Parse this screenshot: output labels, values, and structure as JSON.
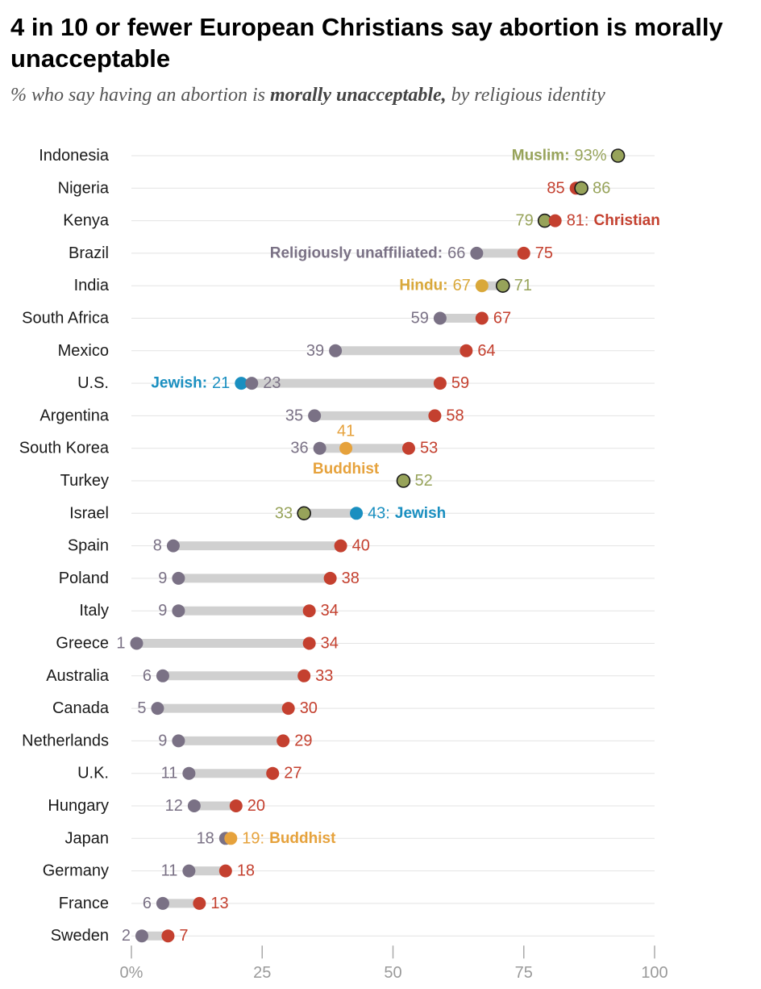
{
  "title": "4 in 10 or fewer European Christians say abortion is morally unacceptable",
  "subtitle": {
    "pre": "% who say having an abortion is ",
    "bold": "morally unacceptable,",
    "post": " by religious identity"
  },
  "colors": {
    "christian": "#c4402f",
    "unaffiliated": "#7a7185",
    "muslim": "#97a35a",
    "hindu": "#d9a83a",
    "jewish": "#1a8fc0",
    "buddhist": "#e6a23c",
    "bar": "#d0d0d0",
    "grid": "#e3e3e3"
  },
  "chart_data": {
    "type": "dot-range",
    "title": "4 in 10 or fewer European Christians say abortion is morally unacceptable",
    "subtitle": "% who say having an abortion is morally unacceptable, by religious identity",
    "x_ticks": [
      "0%",
      "25",
      "50",
      "75",
      "100"
    ],
    "xlim": [
      0,
      100
    ],
    "countries": [
      {
        "name": "Indonesia",
        "points": [
          {
            "group": "muslim",
            "value": 93,
            "label": "93%",
            "tag": "Muslim:",
            "tagPos": "left"
          }
        ]
      },
      {
        "name": "Nigeria",
        "points": [
          {
            "group": "christian",
            "value": 85,
            "label": "85",
            "labelPos": "left"
          },
          {
            "group": "muslim",
            "value": 86,
            "label": "86",
            "labelPos": "right"
          }
        ]
      },
      {
        "name": "Kenya",
        "points": [
          {
            "group": "muslim",
            "value": 79,
            "label": "79",
            "labelPos": "left"
          },
          {
            "group": "christian",
            "value": 81,
            "label": "81:",
            "tag": "Christian",
            "tagPos": "right"
          }
        ]
      },
      {
        "name": "Brazil",
        "points": [
          {
            "group": "unaffiliated",
            "value": 66,
            "label": "66",
            "tag": "Religiously unaffiliated:",
            "tagPos": "left"
          },
          {
            "group": "christian",
            "value": 75,
            "label": "75",
            "labelPos": "right"
          }
        ]
      },
      {
        "name": "India",
        "points": [
          {
            "group": "hindu",
            "value": 67,
            "label": "67",
            "tag": "Hindu:",
            "tagPos": "left"
          },
          {
            "group": "muslim",
            "value": 71,
            "label": "71",
            "labelPos": "right"
          }
        ]
      },
      {
        "name": "South Africa",
        "points": [
          {
            "group": "unaffiliated",
            "value": 59,
            "label": "59",
            "labelPos": "left"
          },
          {
            "group": "christian",
            "value": 67,
            "label": "67",
            "labelPos": "right"
          }
        ]
      },
      {
        "name": "Mexico",
        "points": [
          {
            "group": "unaffiliated",
            "value": 39,
            "label": "39",
            "labelPos": "left"
          },
          {
            "group": "christian",
            "value": 64,
            "label": "64",
            "labelPos": "right"
          }
        ]
      },
      {
        "name": "U.S.",
        "points": [
          {
            "group": "jewish",
            "value": 21,
            "label": "21",
            "tag": "Jewish:",
            "tagPos": "left"
          },
          {
            "group": "unaffiliated",
            "value": 23,
            "label": "23",
            "labelPos": "right"
          },
          {
            "group": "christian",
            "value": 59,
            "label": "59",
            "labelPos": "right"
          }
        ]
      },
      {
        "name": "Argentina",
        "points": [
          {
            "group": "unaffiliated",
            "value": 35,
            "label": "35",
            "labelPos": "left"
          },
          {
            "group": "christian",
            "value": 58,
            "label": "58",
            "labelPos": "right"
          }
        ]
      },
      {
        "name": "South Korea",
        "points": [
          {
            "group": "unaffiliated",
            "value": 36,
            "label": "36",
            "labelPos": "left"
          },
          {
            "group": "buddhist",
            "value": 41,
            "label": "41",
            "labelPos": "above",
            "tag": "Buddhist",
            "tagPos": "below"
          },
          {
            "group": "christian",
            "value": 53,
            "label": "53",
            "labelPos": "right"
          }
        ]
      },
      {
        "name": "Turkey",
        "points": [
          {
            "group": "muslim",
            "value": 52,
            "label": "52",
            "labelPos": "right"
          }
        ]
      },
      {
        "name": "Israel",
        "points": [
          {
            "group": "muslim",
            "value": 33,
            "label": "33",
            "labelPos": "left"
          },
          {
            "group": "jewish",
            "value": 43,
            "label": "43:",
            "tag": "Jewish",
            "tagPos": "right"
          }
        ]
      },
      {
        "name": "Spain",
        "points": [
          {
            "group": "unaffiliated",
            "value": 8,
            "label": "8",
            "labelPos": "left"
          },
          {
            "group": "christian",
            "value": 40,
            "label": "40",
            "labelPos": "right"
          }
        ]
      },
      {
        "name": "Poland",
        "points": [
          {
            "group": "unaffiliated",
            "value": 9,
            "label": "9",
            "labelPos": "left"
          },
          {
            "group": "christian",
            "value": 38,
            "label": "38",
            "labelPos": "right"
          }
        ]
      },
      {
        "name": "Italy",
        "points": [
          {
            "group": "unaffiliated",
            "value": 9,
            "label": "9",
            "labelPos": "left"
          },
          {
            "group": "christian",
            "value": 34,
            "label": "34",
            "labelPos": "right"
          }
        ]
      },
      {
        "name": "Greece",
        "points": [
          {
            "group": "unaffiliated",
            "value": 1,
            "label": "1",
            "labelPos": "left"
          },
          {
            "group": "christian",
            "value": 34,
            "label": "34",
            "labelPos": "right"
          }
        ]
      },
      {
        "name": "Australia",
        "points": [
          {
            "group": "unaffiliated",
            "value": 6,
            "label": "6",
            "labelPos": "left"
          },
          {
            "group": "christian",
            "value": 33,
            "label": "33",
            "labelPos": "right"
          }
        ]
      },
      {
        "name": "Canada",
        "points": [
          {
            "group": "unaffiliated",
            "value": 5,
            "label": "5",
            "labelPos": "left"
          },
          {
            "group": "christian",
            "value": 30,
            "label": "30",
            "labelPos": "right"
          }
        ]
      },
      {
        "name": "Netherlands",
        "points": [
          {
            "group": "unaffiliated",
            "value": 9,
            "label": "9",
            "labelPos": "left"
          },
          {
            "group": "christian",
            "value": 29,
            "label": "29",
            "labelPos": "right"
          }
        ]
      },
      {
        "name": "U.K.",
        "points": [
          {
            "group": "unaffiliated",
            "value": 11,
            "label": "11",
            "labelPos": "left"
          },
          {
            "group": "christian",
            "value": 27,
            "label": "27",
            "labelPos": "right"
          }
        ]
      },
      {
        "name": "Hungary",
        "points": [
          {
            "group": "unaffiliated",
            "value": 12,
            "label": "12",
            "labelPos": "left"
          },
          {
            "group": "christian",
            "value": 20,
            "label": "20",
            "labelPos": "right"
          }
        ]
      },
      {
        "name": "Japan",
        "points": [
          {
            "group": "unaffiliated",
            "value": 18,
            "label": "18",
            "labelPos": "left"
          },
          {
            "group": "buddhist",
            "value": 19,
            "label": "19:",
            "tag": "Buddhist",
            "tagPos": "right"
          }
        ]
      },
      {
        "name": "Germany",
        "points": [
          {
            "group": "unaffiliated",
            "value": 11,
            "label": "11",
            "labelPos": "left"
          },
          {
            "group": "christian",
            "value": 18,
            "label": "18",
            "labelPos": "right"
          }
        ]
      },
      {
        "name": "France",
        "points": [
          {
            "group": "unaffiliated",
            "value": 6,
            "label": "6",
            "labelPos": "left"
          },
          {
            "group": "christian",
            "value": 13,
            "label": "13",
            "labelPos": "right"
          }
        ]
      },
      {
        "name": "Sweden",
        "points": [
          {
            "group": "unaffiliated",
            "value": 2,
            "label": "2",
            "labelPos": "left"
          },
          {
            "group": "christian",
            "value": 7,
            "label": "7",
            "labelPos": "right"
          }
        ]
      }
    ]
  }
}
